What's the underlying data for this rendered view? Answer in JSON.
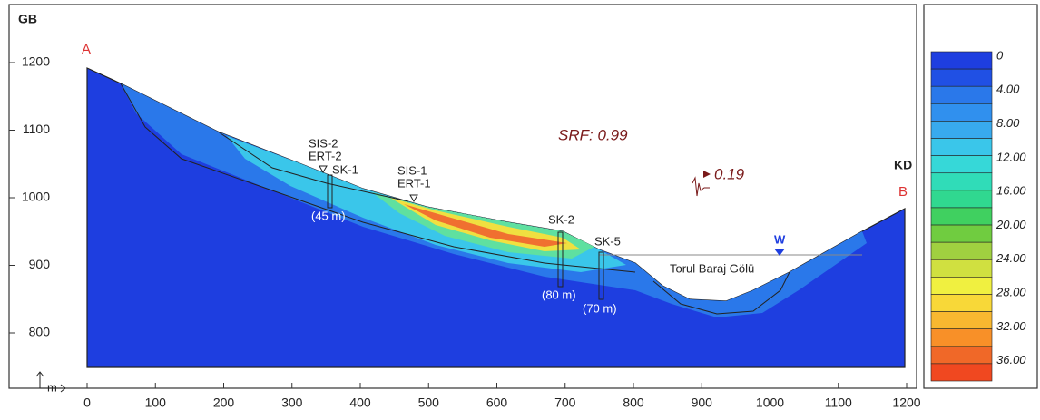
{
  "axes": {
    "xticks": [
      0,
      100,
      200,
      300,
      400,
      500,
      600,
      700,
      800,
      900,
      1000,
      1100,
      1200
    ],
    "yticks": [
      800,
      900,
      1000,
      1100,
      1200
    ],
    "xunit": "m"
  },
  "legend": [
    "0",
    "4.00",
    "8.00",
    "12.00",
    "16.00",
    "20.00",
    "24.00",
    "28.00",
    "32.00",
    "36.00"
  ],
  "labels": {
    "gb": "GB",
    "a": "A",
    "kd": "KD",
    "b": "B",
    "sis2": "SIS-2",
    "ert2": "ERT-2",
    "sk1": "SK-1",
    "sk1d": "(45 m)",
    "sis1": "SIS-1",
    "ert1": "ERT-1",
    "sk2": "SK-2",
    "sk2d": "(80 m)",
    "sk5": "SK-5",
    "sk5d": "(70 m)",
    "lake": "Torul Baraj Gölü",
    "w": "W",
    "srf": "SRF: 0.99",
    "seis": "0.19"
  }
}
